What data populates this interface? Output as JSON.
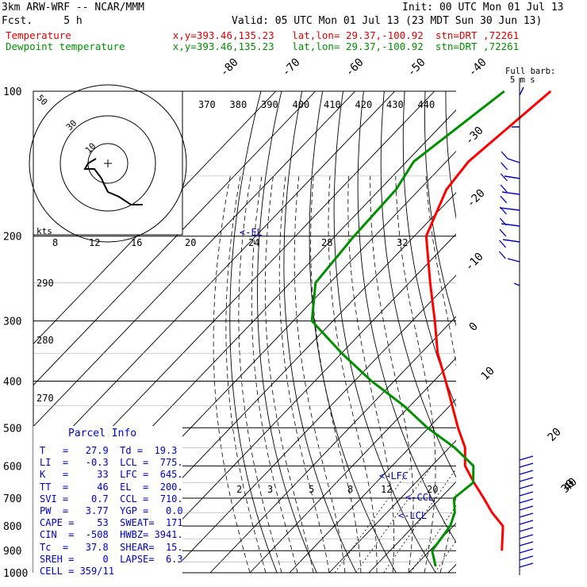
{
  "header": {
    "model": "3km ARW-WRF -- NCAR/MMM",
    "init": "Init: 00 UTC Mon 01 Jul 13",
    "fcst": "Fcst.     5 h",
    "valid": "Valid: 05 UTC Mon 01 Jul 13 (23 MDT Sun 30 Jun 13)",
    "line1": "Temperature                 x,y=393.46,135.23   lat,lon= 29.37,-100.92  stn=DRT ,72261",
    "line2": "Dewpoint temperature        x,y=393.46,135.23   lat,lon= 29.37,-100.92  stn=DRT ,72261"
  },
  "colors": {
    "temperature": "#ff0000",
    "dewpoint": "#009000",
    "parcel_text": "#0000c8",
    "background": "#ffffff"
  },
  "chart_data": {
    "type": "line",
    "title": "",
    "pressure_labels": [
      "100",
      "200",
      "300",
      "400",
      "500",
      "600",
      "700",
      "800",
      "900",
      "1000"
    ],
    "temperature_labels": [
      "-80",
      "-70",
      "-60",
      "-50",
      "-40",
      "-30",
      "-20",
      "-10",
      "0",
      "10",
      "20",
      "30",
      "40"
    ],
    "theta_labels": [
      "370",
      "380",
      "390",
      "400",
      "410",
      "420",
      "430",
      "440"
    ],
    "theta_left_labels": [
      "290",
      "280",
      "270"
    ],
    "mixing_ratio_labels": [
      "2",
      "3",
      "5",
      "8",
      "12",
      "20"
    ],
    "hodograph": {
      "unit_label": "kts",
      "speed_labels": [
        "8",
        "12",
        "16",
        "20",
        "24",
        "28",
        "32"
      ],
      "ring_labels": [
        "50",
        "30",
        "10"
      ]
    },
    "series": [
      {
        "name": "Temperature",
        "x": [
          -70.7,
          -74.4,
          -73.2,
          -67.0,
          -54.7,
          -44.3,
          -35.8,
          -27.0,
          -19.4,
          -12.6,
          -6.0,
          -1.6,
          4.7,
          10.9,
          16.5,
          22.5,
          28.2
        ],
        "y": [
          100,
          140,
          160,
          200,
          250,
          300,
          350,
          400,
          450,
          500,
          550,
          600,
          650,
          700,
          750,
          800,
          900
        ]
      },
      {
        "name": "Dewpoint temperature",
        "x": [
          -82.4,
          -88.2,
          -85.9,
          -85.2,
          -83.6,
          -75.3,
          -60.0,
          -45.7,
          -31.6,
          -20.3,
          -8.6,
          0.5,
          4.5,
          3.4,
          7.1,
          9.2,
          10.6,
          15.3
        ],
        "y": [
          100,
          140,
          160,
          200,
          250,
          300,
          350,
          400,
          450,
          500,
          550,
          600,
          650,
          700,
          750,
          800,
          900,
          970
        ]
      }
    ],
    "wind_speed_labels": [
      "Full barb:",
      "5 m s"
    ],
    "level_markers": [
      "<-EL",
      "<-LFC",
      "<-CCL",
      "<-LCL"
    ]
  },
  "parcel_info": {
    "title": "Parcel Info",
    "rows": [
      "T   =   27.9  Td =  19.3",
      "LI  =   -0.3  LCL =  775.",
      "K   =     33  LFC =  645.",
      "TT  =     46  EL  =  200.",
      "SVI =    0.7  CCL =  710.",
      "PW  =   3.77  YGP =   0.0",
      "CAPE =    53  SWEAT=  171",
      "CIN  =  -508  HWBZ= 3941.",
      "Tc  =   37.8  SHEAR=  15.",
      "SREH =     0  LAPSE=  6.3",
      "CELL = 359/11"
    ]
  }
}
